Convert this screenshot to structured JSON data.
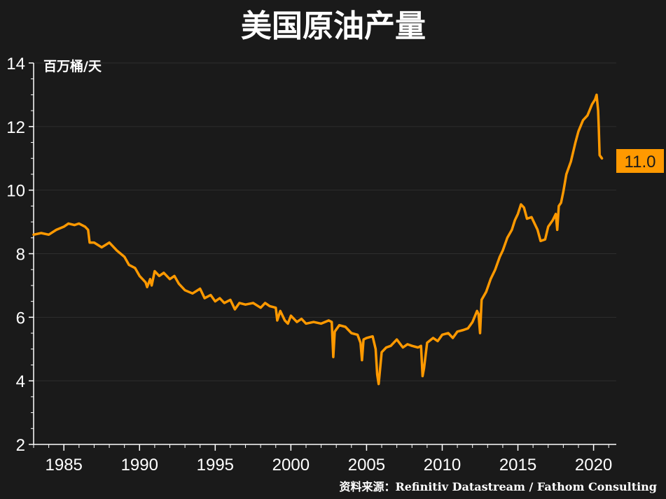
{
  "title": "美国原油产量",
  "unit_label": "百万桶/天",
  "source": "资料来源：Refinitiv Datastream / Fathom Consulting",
  "last_value_label": "11.0",
  "colors": {
    "background": "#1a1a1a",
    "line": "#ff9900",
    "text": "#ffffff",
    "label_bg": "#ff9900",
    "label_text": "#1a1a1a"
  },
  "chart_data": {
    "type": "line",
    "title": "美国原油产量",
    "ylabel": "百万桶/天",
    "xlim": [
      1983,
      2021.5
    ],
    "ylim": [
      2,
      14
    ],
    "y_ticks": [
      2,
      4,
      6,
      8,
      10,
      12,
      14
    ],
    "x_ticks": [
      1985,
      1990,
      1995,
      2000,
      2005,
      2010,
      2015,
      2020
    ],
    "grid": "horizontal",
    "series": [
      {
        "points": [
          [
            1983.0,
            8.6
          ],
          [
            1983.5,
            8.65
          ],
          [
            1984.0,
            8.6
          ],
          [
            1984.5,
            8.75
          ],
          [
            1985.0,
            8.85
          ],
          [
            1985.3,
            8.95
          ],
          [
            1985.7,
            8.9
          ],
          [
            1986.0,
            8.95
          ],
          [
            1986.4,
            8.85
          ],
          [
            1986.6,
            8.75
          ],
          [
            1986.7,
            8.35
          ],
          [
            1987.0,
            8.35
          ],
          [
            1987.5,
            8.2
          ],
          [
            1988.0,
            8.35
          ],
          [
            1988.5,
            8.1
          ],
          [
            1989.0,
            7.9
          ],
          [
            1989.3,
            7.65
          ],
          [
            1989.7,
            7.55
          ],
          [
            1990.0,
            7.3
          ],
          [
            1990.4,
            7.1
          ],
          [
            1990.5,
            6.95
          ],
          [
            1990.7,
            7.2
          ],
          [
            1990.8,
            7.0
          ],
          [
            1991.0,
            7.45
          ],
          [
            1991.3,
            7.3
          ],
          [
            1991.6,
            7.4
          ],
          [
            1992.0,
            7.2
          ],
          [
            1992.3,
            7.3
          ],
          [
            1992.6,
            7.05
          ],
          [
            1993.0,
            6.85
          ],
          [
            1993.5,
            6.75
          ],
          [
            1994.0,
            6.9
          ],
          [
            1994.3,
            6.6
          ],
          [
            1994.7,
            6.7
          ],
          [
            1995.0,
            6.5
          ],
          [
            1995.3,
            6.6
          ],
          [
            1995.6,
            6.45
          ],
          [
            1996.0,
            6.55
          ],
          [
            1996.3,
            6.25
          ],
          [
            1996.6,
            6.45
          ],
          [
            1997.0,
            6.4
          ],
          [
            1997.5,
            6.45
          ],
          [
            1998.0,
            6.3
          ],
          [
            1998.3,
            6.45
          ],
          [
            1998.6,
            6.35
          ],
          [
            1999.0,
            6.3
          ],
          [
            1999.1,
            5.9
          ],
          [
            1999.3,
            6.2
          ],
          [
            1999.6,
            5.9
          ],
          [
            1999.8,
            5.8
          ],
          [
            2000.0,
            6.05
          ],
          [
            2000.4,
            5.85
          ],
          [
            2000.7,
            5.95
          ],
          [
            2001.0,
            5.8
          ],
          [
            2001.5,
            5.85
          ],
          [
            2002.0,
            5.8
          ],
          [
            2002.5,
            5.9
          ],
          [
            2002.7,
            5.85
          ],
          [
            2002.8,
            4.75
          ],
          [
            2002.9,
            5.55
          ],
          [
            2003.2,
            5.75
          ],
          [
            2003.6,
            5.7
          ],
          [
            2004.0,
            5.5
          ],
          [
            2004.4,
            5.45
          ],
          [
            2004.6,
            5.2
          ],
          [
            2004.7,
            4.65
          ],
          [
            2004.8,
            5.3
          ],
          [
            2005.0,
            5.35
          ],
          [
            2005.4,
            5.4
          ],
          [
            2005.6,
            5.0
          ],
          [
            2005.7,
            4.2
          ],
          [
            2005.8,
            3.9
          ],
          [
            2006.0,
            4.9
          ],
          [
            2006.3,
            5.05
          ],
          [
            2006.6,
            5.1
          ],
          [
            2007.0,
            5.3
          ],
          [
            2007.4,
            5.05
          ],
          [
            2007.7,
            5.15
          ],
          [
            2008.0,
            5.1
          ],
          [
            2008.4,
            5.05
          ],
          [
            2008.6,
            5.1
          ],
          [
            2008.7,
            4.15
          ],
          [
            2008.8,
            4.4
          ],
          [
            2009.0,
            5.2
          ],
          [
            2009.4,
            5.35
          ],
          [
            2009.7,
            5.25
          ],
          [
            2010.0,
            5.45
          ],
          [
            2010.4,
            5.5
          ],
          [
            2010.7,
            5.35
          ],
          [
            2011.0,
            5.55
          ],
          [
            2011.4,
            5.6
          ],
          [
            2011.7,
            5.65
          ],
          [
            2012.0,
            5.85
          ],
          [
            2012.3,
            6.2
          ],
          [
            2012.4,
            6.1
          ],
          [
            2012.5,
            5.5
          ],
          [
            2012.6,
            6.55
          ],
          [
            2012.9,
            6.8
          ],
          [
            2013.2,
            7.2
          ],
          [
            2013.5,
            7.5
          ],
          [
            2013.8,
            7.9
          ],
          [
            2014.0,
            8.1
          ],
          [
            2014.3,
            8.5
          ],
          [
            2014.6,
            8.75
          ],
          [
            2014.8,
            9.05
          ],
          [
            2015.0,
            9.25
          ],
          [
            2015.2,
            9.55
          ],
          [
            2015.4,
            9.45
          ],
          [
            2015.6,
            9.1
          ],
          [
            2015.9,
            9.15
          ],
          [
            2016.1,
            8.95
          ],
          [
            2016.3,
            8.75
          ],
          [
            2016.5,
            8.4
          ],
          [
            2016.8,
            8.45
          ],
          [
            2017.0,
            8.85
          ],
          [
            2017.3,
            9.05
          ],
          [
            2017.5,
            9.25
          ],
          [
            2017.6,
            8.75
          ],
          [
            2017.7,
            9.5
          ],
          [
            2017.85,
            9.6
          ],
          [
            2018.0,
            9.95
          ],
          [
            2018.2,
            10.5
          ],
          [
            2018.5,
            10.9
          ],
          [
            2018.8,
            11.5
          ],
          [
            2019.0,
            11.85
          ],
          [
            2019.3,
            12.2
          ],
          [
            2019.6,
            12.35
          ],
          [
            2019.9,
            12.7
          ],
          [
            2020.1,
            12.85
          ],
          [
            2020.2,
            13.0
          ],
          [
            2020.3,
            12.5
          ],
          [
            2020.35,
            11.9
          ],
          [
            2020.4,
            11.1
          ],
          [
            2020.55,
            11.0
          ]
        ]
      }
    ]
  }
}
